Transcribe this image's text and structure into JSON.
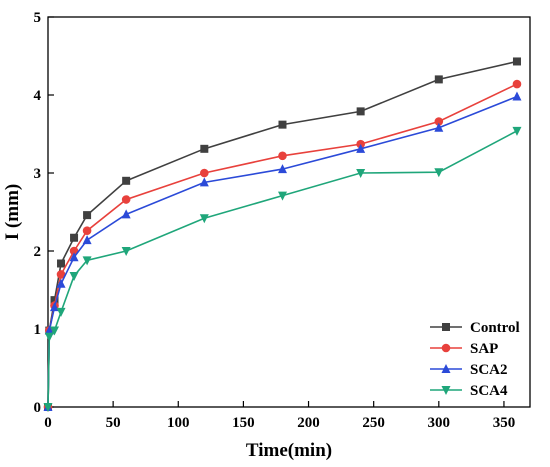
{
  "chart_data": {
    "type": "line",
    "xlabel": "Time(min)",
    "ylabel": "I (mm)",
    "xlim": [
      0,
      370
    ],
    "ylim": [
      0,
      5
    ],
    "xticks": [
      0,
      50,
      100,
      150,
      200,
      250,
      300,
      350
    ],
    "yticks": [
      0,
      1,
      2,
      3,
      4,
      5
    ],
    "grid": false,
    "legend_position": "bottom-right",
    "series": [
      {
        "name": "Control",
        "color": "#404040",
        "marker": "square",
        "x": [
          0,
          1,
          5,
          10,
          20,
          30,
          60,
          120,
          180,
          240,
          300,
          360
        ],
        "y": [
          0,
          0.98,
          1.37,
          1.84,
          2.17,
          2.46,
          2.9,
          3.31,
          3.62,
          3.79,
          4.2,
          4.43
        ]
      },
      {
        "name": "SAP",
        "color": "#e8413c",
        "marker": "circle",
        "x": [
          0,
          1,
          5,
          10,
          20,
          30,
          60,
          120,
          180,
          240,
          300,
          360
        ],
        "y": [
          0,
          0.98,
          1.3,
          1.7,
          2.0,
          2.26,
          2.66,
          3.0,
          3.22,
          3.37,
          3.66,
          4.14
        ]
      },
      {
        "name": "SCA2",
        "color": "#2b4ad8",
        "marker": "triangle-up",
        "x": [
          0,
          1,
          5,
          10,
          20,
          30,
          60,
          120,
          180,
          240,
          300,
          360
        ],
        "y": [
          0,
          0.98,
          1.28,
          1.58,
          1.92,
          2.14,
          2.47,
          2.88,
          3.05,
          3.31,
          3.58,
          3.98
        ]
      },
      {
        "name": "SCA4",
        "color": "#1fa67a",
        "marker": "triangle-down",
        "x": [
          0,
          1,
          5,
          10,
          20,
          30,
          60,
          120,
          180,
          240,
          300,
          360
        ],
        "y": [
          0,
          0.9,
          0.98,
          1.22,
          1.68,
          1.88,
          2.0,
          2.42,
          2.71,
          3.0,
          3.01,
          3.54
        ]
      }
    ]
  }
}
